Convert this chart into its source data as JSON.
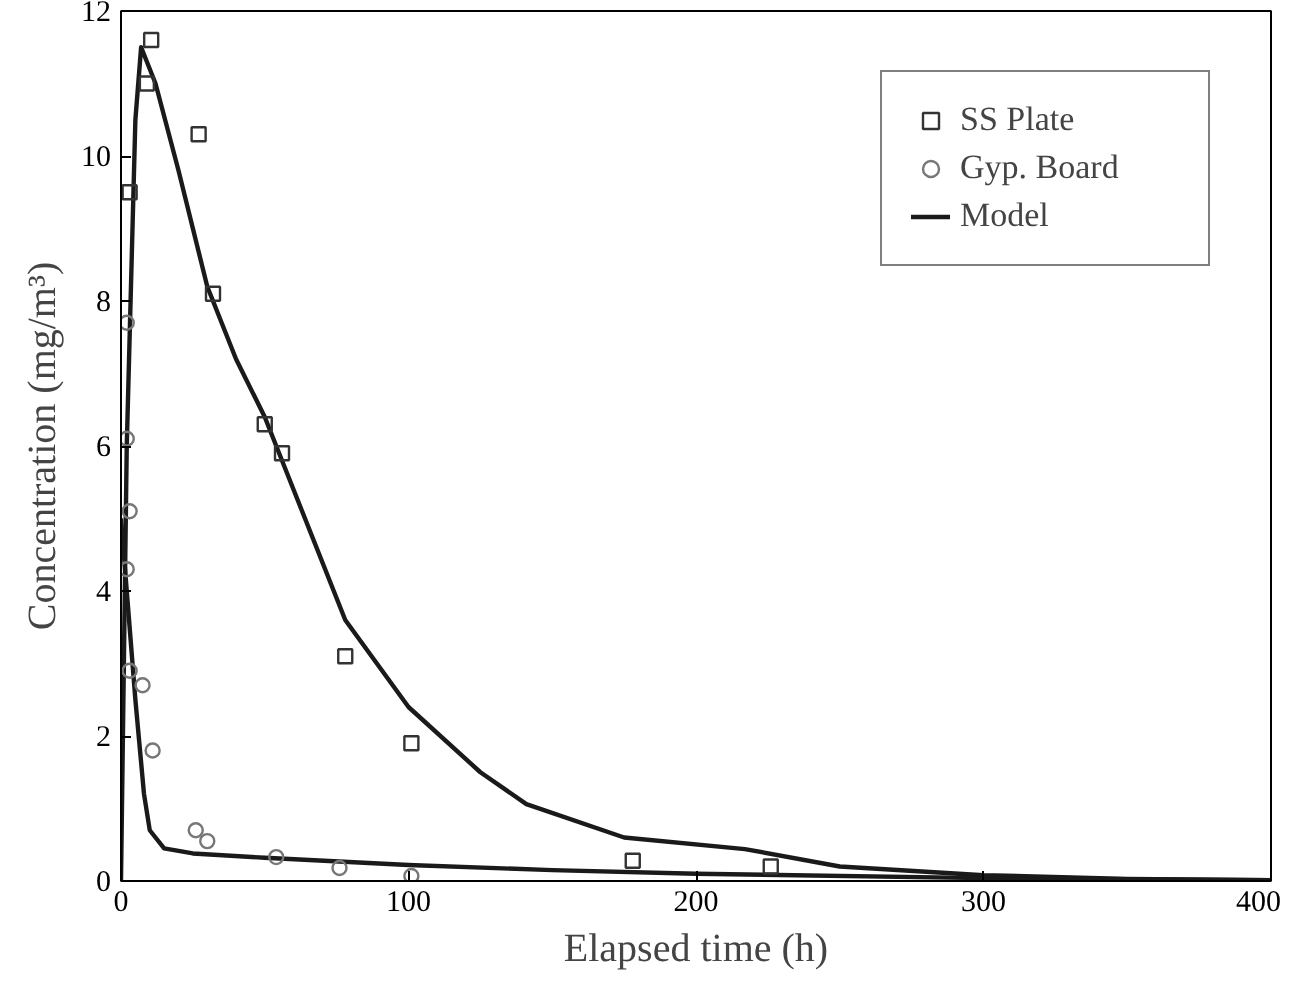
{
  "chart_data": {
    "type": "scatter",
    "xlabel": "Elapsed time (h)",
    "ylabel": "Concentration (mg/m³)",
    "xlim": [
      0,
      400
    ],
    "ylim": [
      0,
      12
    ],
    "xticks": [
      0,
      100,
      200,
      300,
      400
    ],
    "yticks": [
      0,
      2,
      4,
      6,
      8,
      10,
      12
    ],
    "grid": false,
    "legend": "top right",
    "series": [
      {
        "name": "SS Plate",
        "marker": "square",
        "color": "#333333",
        "x": [
          3,
          9,
          10.5,
          27,
          32,
          50,
          56,
          78,
          101,
          178,
          226
        ],
        "values": [
          9.5,
          11.0,
          11.6,
          10.3,
          8.1,
          6.3,
          5.9,
          3.1,
          1.9,
          0.28,
          0.2
        ]
      },
      {
        "name": "Gyp. Board",
        "marker": "circle",
        "color": "#777777",
        "x": [
          2,
          2,
          3,
          2,
          3,
          7.5,
          11,
          26,
          30,
          54,
          76,
          101
        ],
        "values": [
          7.7,
          6.1,
          5.1,
          4.3,
          2.9,
          2.7,
          1.8,
          0.7,
          0.55,
          0.33,
          0.18,
          0.07
        ]
      },
      {
        "name": "Model",
        "type": "line",
        "marker": "none",
        "color": "#1a1a1a",
        "x": [
          0,
          2,
          5,
          7,
          12,
          20,
          30,
          40,
          50,
          60,
          78,
          100,
          125,
          141,
          175,
          217,
          250,
          300,
          350,
          400
        ],
        "values": [
          0,
          6,
          10.5,
          11.5,
          11.0,
          9.8,
          8.2,
          7.2,
          6.4,
          5.4,
          3.6,
          2.4,
          1.5,
          1.06,
          0.6,
          0.44,
          0.2,
          0.08,
          0.03,
          0.01
        ]
      },
      {
        "type": "line",
        "marker": "none",
        "color": "#1a1a1a",
        "x": [
          0,
          2,
          5,
          8,
          10,
          15,
          25,
          50,
          100,
          150,
          200,
          300,
          400
        ],
        "values": [
          5.0,
          4.0,
          2.5,
          1.2,
          0.7,
          0.45,
          0.38,
          0.32,
          0.22,
          0.15,
          0.1,
          0.04,
          0.01
        ]
      }
    ]
  }
}
